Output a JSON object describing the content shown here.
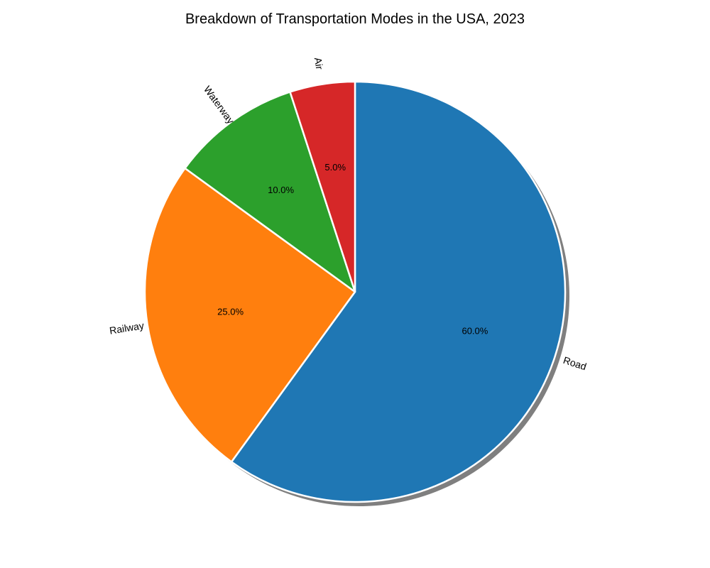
{
  "chart_data": {
    "type": "pie",
    "title": "Breakdown of Transportation Modes in the USA, 2023",
    "categories": [
      "Road",
      "Railway",
      "Waterway",
      "Air"
    ],
    "values": [
      60,
      25,
      10,
      5
    ],
    "percent_labels": [
      "60.0%",
      "25.0%",
      "10.0%",
      "5.0%"
    ],
    "colors": [
      "#1f77b4",
      "#ff7f0e",
      "#2ca02c",
      "#d62728"
    ],
    "start_angle_deg": 90,
    "direction": "clockwise",
    "shadow": true,
    "legend": "none"
  }
}
